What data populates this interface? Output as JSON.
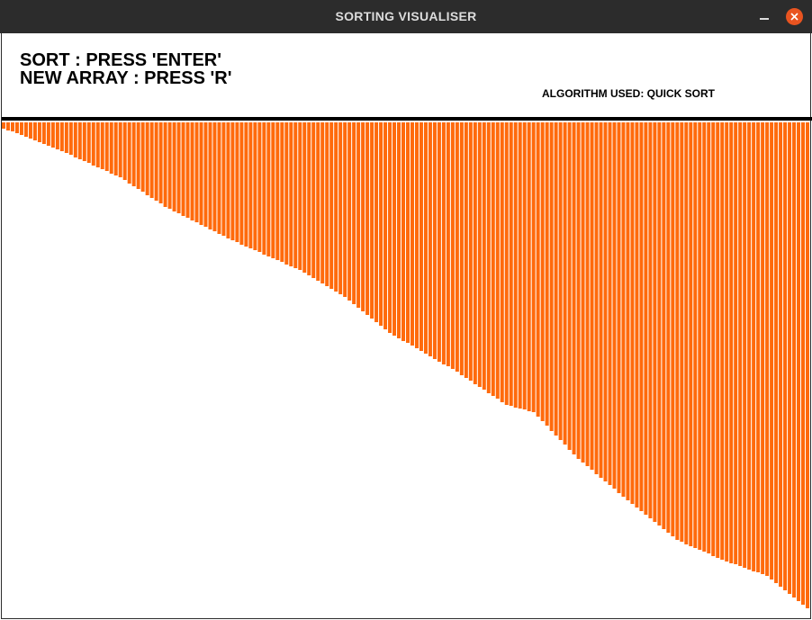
{
  "window": {
    "title": "SORTING VISUALISER"
  },
  "controls": [
    "SORT : PRESS 'ENTER'",
    "NEW ARRAY : PRESS 'R'"
  ],
  "algorithm": "ALGORITHM USED: QUICK SORT",
  "array": [
    7,
    9,
    10,
    12,
    14,
    16,
    18,
    20,
    22,
    24,
    26,
    28,
    30,
    32,
    34,
    36,
    39,
    41,
    43,
    45,
    48,
    50,
    52,
    54,
    57,
    59,
    61,
    64,
    68,
    71,
    74,
    77,
    81,
    84,
    87,
    90,
    94,
    96,
    99,
    101,
    104,
    106,
    109,
    111,
    114,
    116,
    119,
    121,
    124,
    126,
    129,
    131,
    133,
    136,
    138,
    140,
    142,
    144,
    147,
    149,
    151,
    153,
    155,
    158,
    160,
    162,
    164,
    167,
    170,
    173,
    176,
    179,
    182,
    185,
    188,
    191,
    194,
    198,
    202,
    206,
    210,
    214,
    218,
    222,
    226,
    230,
    234,
    237,
    240,
    243,
    245,
    248,
    251,
    254,
    257,
    260,
    263,
    266,
    269,
    271,
    274,
    277,
    281,
    284,
    287,
    291,
    294,
    297,
    301,
    304,
    307,
    311,
    314,
    315,
    317,
    318,
    319,
    321,
    322,
    327,
    332,
    337,
    343,
    348,
    353,
    358,
    364,
    369,
    374,
    378,
    382,
    386,
    391,
    395,
    399,
    403,
    407,
    412,
    416,
    420,
    424,
    428,
    432,
    436,
    440,
    444,
    448,
    452,
    456,
    460,
    464,
    466,
    469,
    471,
    473,
    475,
    477,
    479,
    482,
    484,
    486,
    488,
    490,
    491,
    493,
    495,
    497,
    499,
    500,
    502,
    504,
    508,
    512,
    516,
    520,
    524,
    528,
    532,
    536,
    540
  ]
}
